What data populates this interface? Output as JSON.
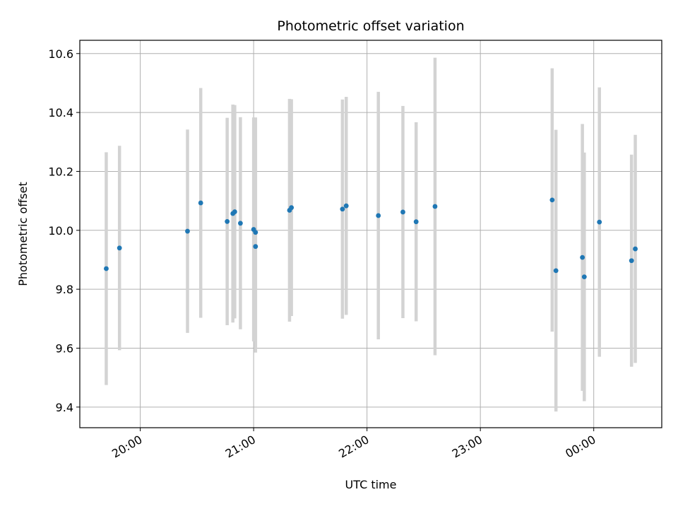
{
  "chart_data": {
    "type": "scatter",
    "title": "Photometric offset variation",
    "xlabel": "UTC time",
    "ylabel": "Photometric offset",
    "xlim": [
      "2000-01-01T19:28:00",
      "2000-01-02T00:36:00"
    ],
    "ylim": [
      9.33,
      10.645
    ],
    "yticks": [
      9.4,
      9.6,
      9.8,
      10.0,
      10.2,
      10.4,
      10.6
    ],
    "ytick_labels": [
      "9.4",
      "9.6",
      "9.8",
      "10.0",
      "10.2",
      "10.4",
      "10.6"
    ],
    "xticks": [
      "2000-01-01T20:00:00",
      "2000-01-01T21:00:00",
      "2000-01-01T22:00:00",
      "2000-01-01T23:00:00",
      "2000-01-02T00:00:00"
    ],
    "xtick_labels": [
      "20:00",
      "21:00",
      "22:00",
      "23:00",
      "00:00"
    ],
    "grid": true,
    "colors": {
      "point": "#1f77b4",
      "errorbar": "#d3d3d3",
      "grid": "#b0b0b0"
    },
    "points": [
      {
        "x": "2000-01-01T19:42:00",
        "y": 9.87,
        "yerr": 0.395
      },
      {
        "x": "2000-01-01T19:49:00",
        "y": 9.94,
        "yerr": 0.347
      },
      {
        "x": "2000-01-01T20:25:00",
        "y": 9.997,
        "yerr": 0.345
      },
      {
        "x": "2000-01-01T20:32:00",
        "y": 10.093,
        "yerr": 0.39
      },
      {
        "x": "2000-01-01T20:46:00",
        "y": 10.03,
        "yerr": 0.352
      },
      {
        "x": "2000-01-01T20:49:00",
        "y": 10.057,
        "yerr": 0.37
      },
      {
        "x": "2000-01-01T20:50:00",
        "y": 10.063,
        "yerr": 0.362
      },
      {
        "x": "2000-01-01T20:53:00",
        "y": 10.024,
        "yerr": 0.36
      },
      {
        "x": "2000-01-01T21:00:00",
        "y": 10.003,
        "yerr": 0.38
      },
      {
        "x": "2000-01-01T21:01:00",
        "y": 9.993,
        "yerr": 0.39
      },
      {
        "x": "2000-01-01T21:01:00",
        "y": 9.945,
        "yerr": 0.36
      },
      {
        "x": "2000-01-01T21:19:00",
        "y": 10.068,
        "yerr": 0.378
      },
      {
        "x": "2000-01-01T21:20:00",
        "y": 10.077,
        "yerr": 0.368
      },
      {
        "x": "2000-01-01T21:47:00",
        "y": 10.072,
        "yerr": 0.372
      },
      {
        "x": "2000-01-01T21:49:00",
        "y": 10.083,
        "yerr": 0.37
      },
      {
        "x": "2000-01-01T22:06:00",
        "y": 10.05,
        "yerr": 0.42
      },
      {
        "x": "2000-01-01T22:19:00",
        "y": 10.062,
        "yerr": 0.36
      },
      {
        "x": "2000-01-01T22:26:00",
        "y": 10.029,
        "yerr": 0.338
      },
      {
        "x": "2000-01-01T22:36:00",
        "y": 10.081,
        "yerr": 0.505
      },
      {
        "x": "2000-01-01T23:38:00",
        "y": 10.103,
        "yerr": 0.447
      },
      {
        "x": "2000-01-01T23:40:00",
        "y": 9.863,
        "yerr": 0.478
      },
      {
        "x": "2000-01-01T23:54:00",
        "y": 9.908,
        "yerr": 0.453
      },
      {
        "x": "2000-01-01T23:55:00",
        "y": 9.842,
        "yerr": 0.422
      },
      {
        "x": "2000-01-02T00:03:00",
        "y": 10.028,
        "yerr": 0.457
      },
      {
        "x": "2000-01-02T00:20:00",
        "y": 9.897,
        "yerr": 0.36
      },
      {
        "x": "2000-01-02T00:22:00",
        "y": 9.937,
        "yerr": 0.387
      }
    ]
  }
}
